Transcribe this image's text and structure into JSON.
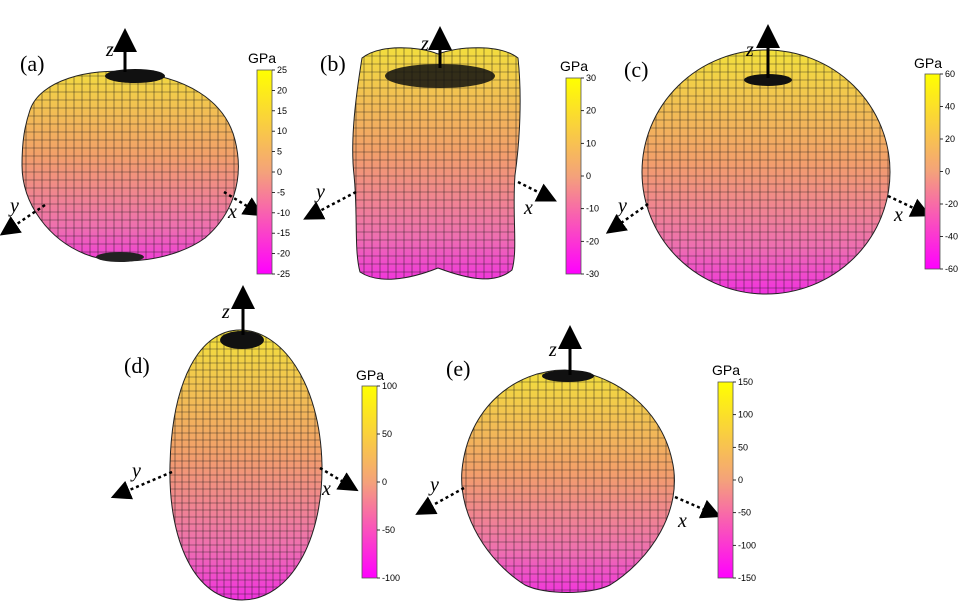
{
  "colormap": {
    "low": "#ff00ff",
    "mid": "#f4a27a",
    "high": "#ffff00"
  },
  "mesh_color": "#1a1a1a",
  "panels": [
    {
      "label": "(a)",
      "axes": {
        "x": "x",
        "y": "y",
        "z": "z"
      },
      "unit": "GPa",
      "ticks": [
        "25",
        "20",
        "15",
        "10",
        "5",
        "0",
        "-5",
        "-10",
        "-15",
        "-20",
        "-25"
      ]
    },
    {
      "label": "(b)",
      "axes": {
        "x": "x",
        "y": "y",
        "z": "z"
      },
      "unit": "GPa",
      "ticks": [
        "30",
        "20",
        "10",
        "0",
        "-10",
        "-20",
        "-30"
      ]
    },
    {
      "label": "(c)",
      "axes": {
        "x": "x",
        "y": "y",
        "z": "z"
      },
      "unit": "GPa",
      "ticks": [
        "60",
        "40",
        "20",
        "0",
        "-20",
        "-40",
        "-60"
      ]
    },
    {
      "label": "(d)",
      "axes": {
        "x": "x",
        "y": "y",
        "z": "z"
      },
      "unit": "GPa",
      "ticks": [
        "100",
        "50",
        "0",
        "-50",
        "-100"
      ]
    },
    {
      "label": "(e)",
      "axes": {
        "x": "x",
        "y": "y",
        "z": "z"
      },
      "unit": "GPa",
      "ticks": [
        "150",
        "100",
        "50",
        "0",
        "-50",
        "-100",
        "-150"
      ]
    }
  ]
}
